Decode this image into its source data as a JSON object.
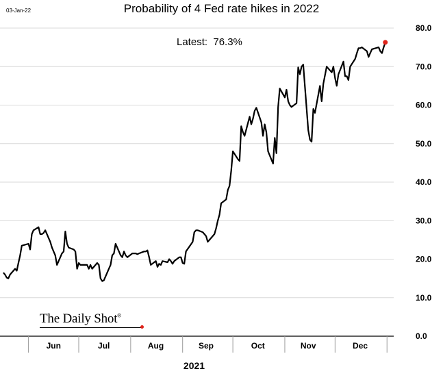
{
  "header": {
    "date_stamp": "03-Jan-22",
    "latest_label": "Latest:  76.3%"
  },
  "branding": {
    "logo_text": "The Daily Shot",
    "logo_mark": "®"
  },
  "colors": {
    "line": "#000000",
    "marker": "#e0241b",
    "grid": "#d9d9d9"
  },
  "chart_data": {
    "type": "line",
    "title": "Probability of 4 Fed rate hikes in 2022",
    "xlabel": "2021",
    "ylabel": "",
    "x_tick_labels": [
      "Jun",
      "Jul",
      "Aug",
      "Sep",
      "Oct",
      "Nov",
      "Dec"
    ],
    "ylim": [
      0,
      80
    ],
    "y_ticks": [
      "0.0",
      "10.0",
      "20.0",
      "30.0",
      "40.0",
      "50.0",
      "60.0",
      "70.0",
      "80.0"
    ],
    "y_axis_position": "right",
    "grid": true,
    "series": [
      {
        "points": [
          [
            "2021-05-17",
            16.5
          ],
          [
            "2021-05-18",
            16.0
          ],
          [
            "2021-05-19",
            15.2
          ],
          [
            "2021-05-20",
            15.0
          ],
          [
            "2021-05-21",
            16.0
          ],
          [
            "2021-05-24",
            17.5
          ],
          [
            "2021-05-25",
            17.0
          ],
          [
            "2021-05-26",
            19.0
          ],
          [
            "2021-05-27",
            21.0
          ],
          [
            "2021-05-28",
            23.5
          ],
          [
            "2021-06-01",
            24.0
          ],
          [
            "2021-06-02",
            22.5
          ],
          [
            "2021-06-03",
            26.5
          ],
          [
            "2021-06-04",
            27.5
          ],
          [
            "2021-06-07",
            28.3
          ],
          [
            "2021-06-08",
            26.5
          ],
          [
            "2021-06-09",
            26.5
          ],
          [
            "2021-06-10",
            26.8
          ],
          [
            "2021-06-11",
            27.5
          ],
          [
            "2021-06-14",
            24.5
          ],
          [
            "2021-06-15",
            23.0
          ],
          [
            "2021-06-16",
            22.0
          ],
          [
            "2021-06-17",
            21.0
          ],
          [
            "2021-06-18",
            18.5
          ],
          [
            "2021-06-21",
            21.5
          ],
          [
            "2021-06-22",
            22.0
          ],
          [
            "2021-06-23",
            27.2
          ],
          [
            "2021-06-24",
            24.0
          ],
          [
            "2021-06-25",
            23.0
          ],
          [
            "2021-06-28",
            22.5
          ],
          [
            "2021-06-29",
            22.0
          ],
          [
            "2021-06-30",
            17.5
          ],
          [
            "2021-07-01",
            19.0
          ],
          [
            "2021-07-02",
            18.5
          ],
          [
            "2021-07-06",
            18.5
          ],
          [
            "2021-07-07",
            17.5
          ],
          [
            "2021-07-08",
            18.5
          ],
          [
            "2021-07-09",
            17.5
          ],
          [
            "2021-07-12",
            19.0
          ],
          [
            "2021-07-13",
            18.5
          ],
          [
            "2021-07-14",
            15.0
          ],
          [
            "2021-07-15",
            14.3
          ],
          [
            "2021-07-16",
            14.5
          ],
          [
            "2021-07-19",
            17.5
          ],
          [
            "2021-07-20",
            18.5
          ],
          [
            "2021-07-21",
            21.0
          ],
          [
            "2021-07-22",
            21.5
          ],
          [
            "2021-07-23",
            24.0
          ],
          [
            "2021-07-26",
            21.0
          ],
          [
            "2021-07-27",
            20.5
          ],
          [
            "2021-07-28",
            22.0
          ],
          [
            "2021-07-29",
            21.0
          ],
          [
            "2021-07-30",
            20.5
          ],
          [
            "2021-08-02",
            21.5
          ],
          [
            "2021-08-03",
            21.5
          ],
          [
            "2021-08-04",
            21.5
          ],
          [
            "2021-08-05",
            21.3
          ],
          [
            "2021-08-06",
            21.5
          ],
          [
            "2021-08-09",
            22.0
          ],
          [
            "2021-08-10",
            22.0
          ],
          [
            "2021-08-11",
            22.3
          ],
          [
            "2021-08-12",
            20.5
          ],
          [
            "2021-08-13",
            18.5
          ],
          [
            "2021-08-16",
            19.5
          ],
          [
            "2021-08-17",
            18.0
          ],
          [
            "2021-08-18",
            18.8
          ],
          [
            "2021-08-19",
            18.5
          ],
          [
            "2021-08-20",
            19.5
          ],
          [
            "2021-08-23",
            19.2
          ],
          [
            "2021-08-24",
            20.0
          ],
          [
            "2021-08-25",
            19.5
          ],
          [
            "2021-08-26",
            18.8
          ],
          [
            "2021-08-27",
            19.5
          ],
          [
            "2021-08-30",
            20.5
          ],
          [
            "2021-08-31",
            20.5
          ],
          [
            "2021-09-01",
            19.0
          ],
          [
            "2021-09-02",
            18.8
          ],
          [
            "2021-09-03",
            22.0
          ],
          [
            "2021-09-07",
            24.5
          ],
          [
            "2021-09-08",
            27.0
          ],
          [
            "2021-09-09",
            27.5
          ],
          [
            "2021-09-10",
            27.5
          ],
          [
            "2021-09-13",
            27.0
          ],
          [
            "2021-09-14",
            26.5
          ],
          [
            "2021-09-15",
            26.0
          ],
          [
            "2021-09-16",
            24.5
          ],
          [
            "2021-09-17",
            25.0
          ],
          [
            "2021-09-20",
            26.5
          ],
          [
            "2021-09-21",
            28.0
          ],
          [
            "2021-09-22",
            30.0
          ],
          [
            "2021-09-23",
            31.5
          ],
          [
            "2021-09-24",
            34.5
          ],
          [
            "2021-09-27",
            35.5
          ],
          [
            "2021-09-28",
            38.0
          ],
          [
            "2021-09-29",
            39.0
          ],
          [
            "2021-09-30",
            43.0
          ],
          [
            "2021-10-01",
            48.0
          ],
          [
            "2021-10-04",
            46.0
          ],
          [
            "2021-10-05",
            45.5
          ],
          [
            "2021-10-06",
            54.5
          ],
          [
            "2021-10-07",
            53.0
          ],
          [
            "2021-10-08",
            52.0
          ],
          [
            "2021-10-11",
            57.0
          ],
          [
            "2021-10-12",
            55.0
          ],
          [
            "2021-10-13",
            56.5
          ],
          [
            "2021-10-14",
            58.5
          ],
          [
            "2021-10-15",
            59.3
          ],
          [
            "2021-10-18",
            55.5
          ],
          [
            "2021-10-19",
            52.0
          ],
          [
            "2021-10-20",
            55.0
          ],
          [
            "2021-10-21",
            53.0
          ],
          [
            "2021-10-22",
            48.0
          ],
          [
            "2021-10-25",
            44.8
          ],
          [
            "2021-10-26",
            51.5
          ],
          [
            "2021-10-27",
            47.5
          ],
          [
            "2021-10-28",
            59.5
          ],
          [
            "2021-10-29",
            64.3
          ],
          [
            "2021-11-01",
            62.0
          ],
          [
            "2021-11-02",
            64.0
          ],
          [
            "2021-11-03",
            61.0
          ],
          [
            "2021-11-04",
            60.0
          ],
          [
            "2021-11-05",
            59.5
          ],
          [
            "2021-11-08",
            60.5
          ],
          [
            "2021-11-09",
            69.8
          ],
          [
            "2021-11-10",
            68.0
          ],
          [
            "2021-11-11",
            70.0
          ],
          [
            "2021-11-12",
            70.5
          ],
          [
            "2021-11-15",
            53.5
          ],
          [
            "2021-11-16",
            51.0
          ],
          [
            "2021-11-17",
            50.5
          ],
          [
            "2021-11-18",
            59.0
          ],
          [
            "2021-11-19",
            58.0
          ],
          [
            "2021-11-22",
            65.0
          ],
          [
            "2021-11-23",
            61.0
          ],
          [
            "2021-11-24",
            65.5
          ],
          [
            "2021-11-26",
            70.0
          ],
          [
            "2021-11-29",
            68.5
          ],
          [
            "2021-11-30",
            70.0
          ],
          [
            "2021-12-01",
            67.0
          ],
          [
            "2021-12-02",
            65.0
          ],
          [
            "2021-12-03",
            68.0
          ],
          [
            "2021-12-06",
            71.3
          ],
          [
            "2021-12-07",
            67.5
          ],
          [
            "2021-12-08",
            67.5
          ],
          [
            "2021-12-09",
            66.5
          ],
          [
            "2021-12-10",
            70.0
          ],
          [
            "2021-12-13",
            72.0
          ],
          [
            "2021-12-14",
            73.5
          ],
          [
            "2021-12-15",
            74.8
          ],
          [
            "2021-12-16",
            74.8
          ],
          [
            "2021-12-17",
            75.0
          ],
          [
            "2021-12-20",
            74.0
          ],
          [
            "2021-12-21",
            72.5
          ],
          [
            "2021-12-22",
            73.5
          ],
          [
            "2021-12-23",
            74.5
          ],
          [
            "2021-12-27",
            75.0
          ],
          [
            "2021-12-28",
            74.0
          ],
          [
            "2021-12-29",
            73.5
          ],
          [
            "2021-12-30",
            75.0
          ],
          [
            "2021-12-31",
            76.3
          ]
        ]
      }
    ],
    "annotations": [
      {
        "type": "marker",
        "x": "2021-12-31",
        "y": 76.3,
        "text": ""
      }
    ]
  }
}
